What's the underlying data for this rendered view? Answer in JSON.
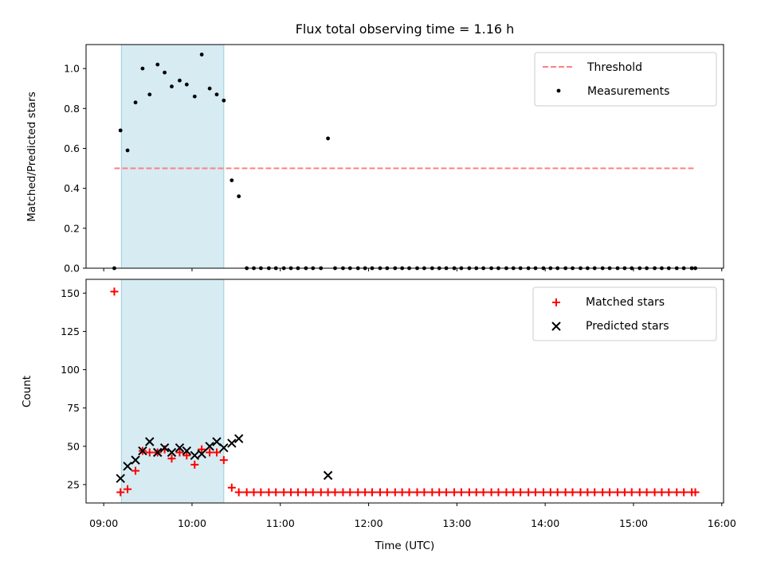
{
  "chart_data": {
    "title": "Flux total observing time = 1.16 h",
    "xlabel": "Time (UTC)",
    "x_unit": "hours UTC (decimal)",
    "x_range": [
      8.8,
      16.02
    ],
    "x_ticks": [
      9,
      10,
      11,
      12,
      13,
      14,
      15,
      16
    ],
    "x_tick_labels": [
      "09:00",
      "10:00",
      "11:00",
      "12:00",
      "13:00",
      "14:00",
      "15:00",
      "16:00"
    ],
    "shaded_interval": [
      9.2,
      10.36
    ],
    "panels": [
      {
        "id": "ratio",
        "type": "scatter",
        "ylabel": "Matched/Predicted stars",
        "ylim": [
          0,
          1.12
        ],
        "y_ticks": [
          0,
          0.2,
          0.4,
          0.6,
          0.8,
          1.0
        ],
        "y_tick_labels": [
          "0.0",
          "0.2",
          "0.4",
          "0.6",
          "0.8",
          "1.0"
        ],
        "threshold": {
          "name": "Threshold",
          "value": 0.5,
          "x_start": 9.12,
          "x_end": 15.7,
          "color": "#ff8080"
        },
        "legend": [
          "Threshold",
          "Measurements"
        ],
        "series": [
          {
            "name": "Measurements",
            "marker": "dot",
            "color": "#000000",
            "points": [
              [
                9.12,
                0.0
              ],
              [
                9.19,
                0.69
              ],
              [
                9.27,
                0.59
              ],
              [
                9.36,
                0.83
              ],
              [
                9.44,
                1.0
              ],
              [
                9.52,
                0.87
              ],
              [
                9.61,
                1.02
              ],
              [
                9.69,
                0.98
              ],
              [
                9.77,
                0.91
              ],
              [
                9.86,
                0.94
              ],
              [
                9.94,
                0.92
              ],
              [
                10.03,
                0.86
              ],
              [
                10.11,
                1.07
              ],
              [
                10.2,
                0.9
              ],
              [
                10.28,
                0.87
              ],
              [
                10.36,
                0.84
              ],
              [
                10.45,
                0.44
              ],
              [
                10.53,
                0.36
              ],
              [
                10.62,
                0.0
              ],
              [
                10.7,
                0.0
              ],
              [
                10.78,
                0.0
              ],
              [
                10.87,
                0.0
              ],
              [
                10.95,
                0.0
              ],
              [
                11.04,
                0.0
              ],
              [
                11.12,
                0.0
              ],
              [
                11.2,
                0.0
              ],
              [
                11.29,
                0.0
              ],
              [
                11.37,
                0.0
              ],
              [
                11.46,
                0.0
              ],
              [
                11.54,
                0.65
              ],
              [
                11.62,
                0.0
              ],
              [
                11.71,
                0.0
              ],
              [
                11.79,
                0.0
              ],
              [
                11.88,
                0.0
              ],
              [
                11.96,
                0.0
              ],
              [
                12.04,
                0.0
              ],
              [
                12.13,
                0.0
              ],
              [
                12.21,
                0.0
              ],
              [
                12.3,
                0.0
              ],
              [
                12.38,
                0.0
              ],
              [
                12.46,
                0.0
              ],
              [
                12.55,
                0.0
              ],
              [
                12.63,
                0.0
              ],
              [
                12.72,
                0.0
              ],
              [
                12.8,
                0.0
              ],
              [
                12.88,
                0.0
              ],
              [
                12.97,
                0.0
              ],
              [
                13.05,
                0.0
              ],
              [
                13.14,
                0.0
              ],
              [
                13.22,
                0.0
              ],
              [
                13.3,
                0.0
              ],
              [
                13.39,
                0.0
              ],
              [
                13.47,
                0.0
              ],
              [
                13.56,
                0.0
              ],
              [
                13.64,
                0.0
              ],
              [
                13.72,
                0.0
              ],
              [
                13.81,
                0.0
              ],
              [
                13.89,
                0.0
              ],
              [
                13.98,
                0.0
              ],
              [
                14.06,
                0.0
              ],
              [
                14.14,
                0.0
              ],
              [
                14.23,
                0.0
              ],
              [
                14.31,
                0.0
              ],
              [
                14.4,
                0.0
              ],
              [
                14.48,
                0.0
              ],
              [
                14.56,
                0.0
              ],
              [
                14.65,
                0.0
              ],
              [
                14.73,
                0.0
              ],
              [
                14.82,
                0.0
              ],
              [
                14.9,
                0.0
              ],
              [
                14.98,
                0.0
              ],
              [
                15.07,
                0.0
              ],
              [
                15.15,
                0.0
              ],
              [
                15.24,
                0.0
              ],
              [
                15.32,
                0.0
              ],
              [
                15.4,
                0.0
              ],
              [
                15.49,
                0.0
              ],
              [
                15.57,
                0.0
              ],
              [
                15.66,
                0.0
              ],
              [
                15.7,
                0.0
              ]
            ]
          }
        ]
      },
      {
        "id": "count",
        "type": "scatter",
        "ylabel": "Count",
        "ylim": [
          13,
          159
        ],
        "y_ticks": [
          25,
          50,
          75,
          100,
          125,
          150
        ],
        "y_tick_labels": [
          "25",
          "50",
          "75",
          "100",
          "125",
          "150"
        ],
        "legend": [
          "Matched stars",
          "Predicted stars"
        ],
        "series": [
          {
            "name": "Matched stars",
            "marker": "plus",
            "color": "#ff0000",
            "points": [
              [
                9.12,
                151
              ],
              [
                9.19,
                20
              ],
              [
                9.27,
                22
              ],
              [
                9.36,
                34
              ],
              [
                9.44,
                47
              ],
              [
                9.52,
                46
              ],
              [
                9.61,
                46
              ],
              [
                9.69,
                48
              ],
              [
                9.77,
                42
              ],
              [
                9.86,
                46
              ],
              [
                9.94,
                44
              ],
              [
                10.03,
                38
              ],
              [
                10.11,
                48
              ],
              [
                10.2,
                46
              ],
              [
                10.28,
                46
              ],
              [
                10.36,
                41
              ],
              [
                10.45,
                23
              ],
              [
                10.53,
                20
              ],
              [
                10.62,
                20
              ],
              [
                10.7,
                20
              ],
              [
                10.78,
                20
              ],
              [
                10.87,
                20
              ],
              [
                10.95,
                20
              ],
              [
                11.04,
                20
              ],
              [
                11.12,
                20
              ],
              [
                11.2,
                20
              ],
              [
                11.29,
                20
              ],
              [
                11.37,
                20
              ],
              [
                11.46,
                20
              ],
              [
                11.54,
                20
              ],
              [
                11.62,
                20
              ],
              [
                11.71,
                20
              ],
              [
                11.79,
                20
              ],
              [
                11.88,
                20
              ],
              [
                11.96,
                20
              ],
              [
                12.04,
                20
              ],
              [
                12.13,
                20
              ],
              [
                12.21,
                20
              ],
              [
                12.3,
                20
              ],
              [
                12.38,
                20
              ],
              [
                12.46,
                20
              ],
              [
                12.55,
                20
              ],
              [
                12.63,
                20
              ],
              [
                12.72,
                20
              ],
              [
                12.8,
                20
              ],
              [
                12.88,
                20
              ],
              [
                12.97,
                20
              ],
              [
                13.05,
                20
              ],
              [
                13.14,
                20
              ],
              [
                13.22,
                20
              ],
              [
                13.3,
                20
              ],
              [
                13.39,
                20
              ],
              [
                13.47,
                20
              ],
              [
                13.56,
                20
              ],
              [
                13.64,
                20
              ],
              [
                13.72,
                20
              ],
              [
                13.81,
                20
              ],
              [
                13.89,
                20
              ],
              [
                13.98,
                20
              ],
              [
                14.06,
                20
              ],
              [
                14.14,
                20
              ],
              [
                14.23,
                20
              ],
              [
                14.31,
                20
              ],
              [
                14.4,
                20
              ],
              [
                14.48,
                20
              ],
              [
                14.56,
                20
              ],
              [
                14.65,
                20
              ],
              [
                14.73,
                20
              ],
              [
                14.82,
                20
              ],
              [
                14.9,
                20
              ],
              [
                14.98,
                20
              ],
              [
                15.07,
                20
              ],
              [
                15.15,
                20
              ],
              [
                15.24,
                20
              ],
              [
                15.32,
                20
              ],
              [
                15.4,
                20
              ],
              [
                15.49,
                20
              ],
              [
                15.57,
                20
              ],
              [
                15.66,
                20
              ],
              [
                15.7,
                20
              ]
            ]
          },
          {
            "name": "Predicted stars",
            "marker": "x",
            "color": "#000000",
            "points": [
              [
                9.19,
                29
              ],
              [
                9.27,
                37
              ],
              [
                9.36,
                41
              ],
              [
                9.44,
                47
              ],
              [
                9.52,
                53
              ],
              [
                9.61,
                46
              ],
              [
                9.69,
                49
              ],
              [
                9.77,
                46
              ],
              [
                9.86,
                49
              ],
              [
                9.94,
                47
              ],
              [
                10.03,
                44
              ],
              [
                10.11,
                45
              ],
              [
                10.2,
                50
              ],
              [
                10.28,
                53
              ],
              [
                10.36,
                49
              ],
              [
                10.45,
                52
              ],
              [
                10.53,
                55
              ],
              [
                11.54,
                31
              ]
            ]
          }
        ]
      }
    ]
  }
}
